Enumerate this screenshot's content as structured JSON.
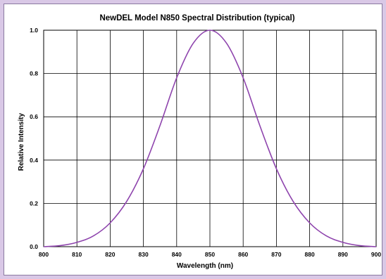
{
  "chart_data": {
    "type": "line",
    "title": "NewDEL Model N850 Spectral Distribution (typical)",
    "xlabel": "Wavelength (nm)",
    "ylabel": "Relative Intensity",
    "xlim": [
      800,
      900
    ],
    "ylim": [
      0,
      1.0
    ],
    "x_ticks": [
      "800",
      "810",
      "820",
      "830",
      "840",
      "850",
      "860",
      "870",
      "880",
      "890",
      "900"
    ],
    "y_ticks": [
      "0.0",
      "0.2",
      "0.4",
      "0.6",
      "0.8",
      "1.0"
    ],
    "grid": true,
    "legend": "none",
    "series": [
      {
        "color": "#8e44ad",
        "x": [
          800,
          805,
          810,
          815,
          820,
          825,
          830,
          835,
          840,
          845,
          850,
          855,
          860,
          865,
          870,
          875,
          880,
          885,
          890,
          895,
          900
        ],
        "y": [
          0.0,
          0.005,
          0.02,
          0.05,
          0.11,
          0.21,
          0.36,
          0.56,
          0.78,
          0.94,
          1.0,
          0.94,
          0.78,
          0.56,
          0.36,
          0.21,
          0.11,
          0.05,
          0.02,
          0.005,
          0.0
        ]
      }
    ]
  }
}
